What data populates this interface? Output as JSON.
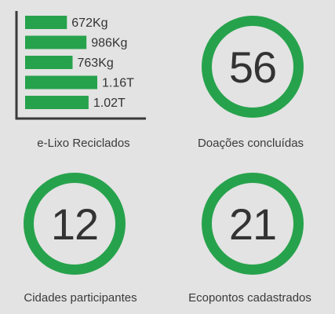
{
  "accent_color": "#27a24c",
  "text_color": "#333333",
  "background_color": "#e3e3e3",
  "chart_data": {
    "type": "bar",
    "orientation": "horizontal",
    "categories": [
      "",
      "",
      "",
      "",
      ""
    ],
    "values": [
      672,
      986,
      763,
      1160,
      1020
    ],
    "labels": [
      "672Kg",
      "986Kg",
      "763Kg",
      "1.16T",
      "1.02T"
    ],
    "unit": "Kg",
    "title": "e-Lixo Reciclados",
    "xlabel": "",
    "ylabel": "",
    "xlim": [
      0,
      1160
    ],
    "grid": false,
    "legend": "none",
    "color": "#27a24c"
  },
  "stats": {
    "ewaste": {
      "caption": "e-Lixo Reciclados"
    },
    "donations": {
      "value": "56",
      "caption": "Doações concluídas"
    },
    "cities": {
      "value": "12",
      "caption": "Cidades participantes"
    },
    "ecopoints": {
      "value": "21",
      "caption": "Ecopontos cadastrados"
    }
  }
}
